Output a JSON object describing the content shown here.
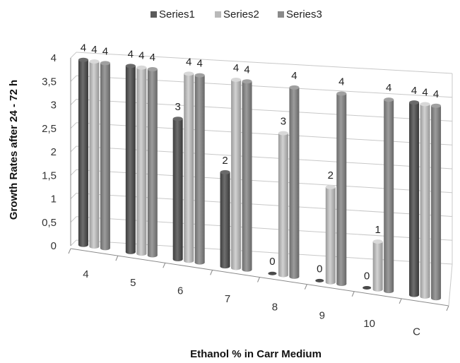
{
  "chart_data": {
    "type": "bar",
    "title": "",
    "xlabel": "Ethanol % in Carr Medium",
    "ylabel": "Growth Rates after 24 - 72 h",
    "categories": [
      "4",
      "5",
      "6",
      "7",
      "8",
      "9",
      "10",
      "C"
    ],
    "series": [
      {
        "name": "Series1",
        "color": "#5a5a5a",
        "values": [
          4,
          4,
          3,
          2,
          0,
          0,
          0,
          4
        ],
        "labels": [
          "4",
          "4",
          "3",
          "2",
          "0",
          "0",
          "0",
          "4"
        ]
      },
      {
        "name": "Series2",
        "color": "#b9b9b9",
        "values": [
          4,
          4,
          4,
          4,
          3,
          2,
          1,
          4
        ],
        "labels": [
          "4",
          "4",
          "4",
          "4",
          "3",
          "2",
          "1",
          "4"
        ]
      },
      {
        "name": "Series3",
        "color": "#8a8a8a",
        "values": [
          4,
          4,
          4,
          4,
          4,
          4,
          4,
          4
        ],
        "labels": [
          "4",
          "4",
          "4",
          "4",
          "4",
          "4",
          "4",
          "4"
        ]
      }
    ],
    "y_ticks": [
      "0",
      "0,5",
      "1",
      "1,5",
      "2",
      "2,5",
      "3",
      "3,5",
      "4"
    ],
    "ylim": [
      0,
      4
    ],
    "grid": true,
    "legend_position": "top"
  }
}
